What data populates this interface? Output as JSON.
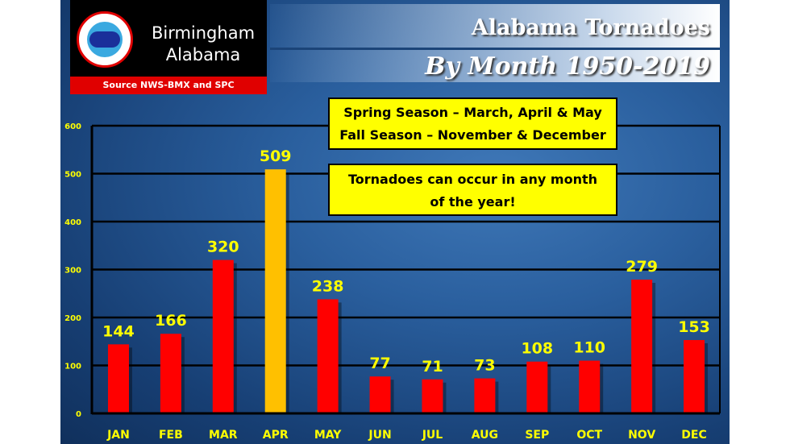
{
  "logo": {
    "line1": "Birmingham",
    "line2": "Alabama",
    "source": "Source NWS-BMX and SPC",
    "seal_text": "NATIONAL WEATHER SERVICE"
  },
  "notes": [
    "Spring Season – March, April & May",
    "Fall Season – November & December",
    "Tornadoes can occur in any month of the year!"
  ],
  "colors": {
    "bar": "#ff0000",
    "highlight": "#ffc000",
    "label": "#ffff00"
  },
  "chart_data": {
    "type": "bar",
    "title": "Alabama Tornadoes",
    "subtitle": "By Month 1950-2019",
    "xlabel": "",
    "ylabel": "",
    "categories": [
      "JAN",
      "FEB",
      "MAR",
      "APR",
      "MAY",
      "JUN",
      "JUL",
      "AUG",
      "SEP",
      "OCT",
      "NOV",
      "DEC"
    ],
    "values": [
      144,
      166,
      320,
      509,
      238,
      77,
      71,
      73,
      108,
      110,
      279,
      153
    ],
    "highlight": "APR",
    "ylim": [
      0,
      600
    ],
    "yticks": [
      0,
      100,
      200,
      300,
      400,
      500,
      600
    ],
    "grid": true,
    "legend": "none"
  }
}
